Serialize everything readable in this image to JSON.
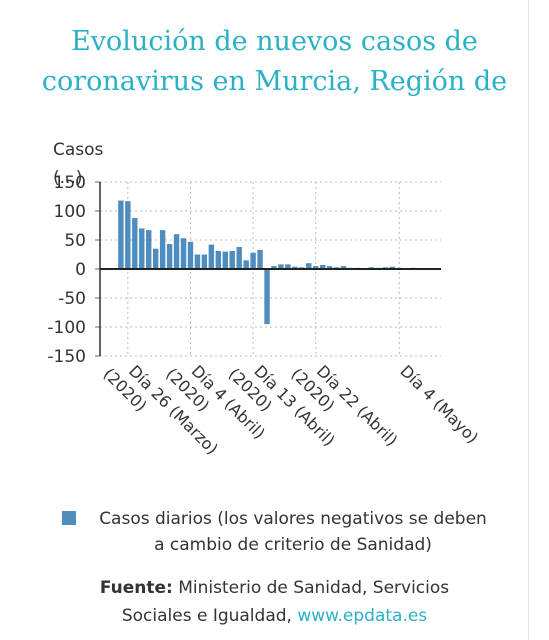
{
  "title": "Evolución de nuevos casos de\ncoronavirus en Murcia, Región de",
  "legend": {
    "label": "Casos diarios (los valores negativos se deben\na cambio de criterio de Sanidad)"
  },
  "source": {
    "label": "Fuente:",
    "text": "Ministerio de Sanidad, Servicios\nSociales e Igualdad,",
    "link": "www.epdata.es"
  },
  "colors": {
    "title": "#2bb1c6",
    "bar": "#4f8dbf",
    "zero_line": "#222222",
    "grid": "#bbbbbb"
  },
  "chart_data": {
    "type": "bar",
    "ylabel": "Casos\n(...)",
    "ylim": [
      -150,
      150
    ],
    "yticks": [
      150,
      100,
      50,
      0,
      -50,
      -100,
      -150
    ],
    "grid": true,
    "legend_position": "bottom",
    "x_start": "2020-03-22",
    "x_end": "2020-05-10",
    "xticks": [
      {
        "date": "2020-03-26",
        "label": "Día 26 (Marzo)\n(2020)"
      },
      {
        "date": "2020-04-04",
        "label": "Día 4 (Abril)\n(2020)"
      },
      {
        "date": "2020-04-13",
        "label": "Día 13 (Abril)\n(2020)"
      },
      {
        "date": "2020-04-22",
        "label": "Día 22 (Abril)\n(2020)"
      },
      {
        "date": "2020-05-04",
        "label": "Día 4 (Mayo)"
      }
    ],
    "series": [
      {
        "name": "Casos diarios (los valores negativos se deben a cambio de criterio de Sanidad)",
        "x": [
          "2020-03-25",
          "2020-03-26",
          "2020-03-27",
          "2020-03-28",
          "2020-03-29",
          "2020-03-30",
          "2020-03-31",
          "2020-04-01",
          "2020-04-02",
          "2020-04-03",
          "2020-04-04",
          "2020-04-05",
          "2020-04-06",
          "2020-04-07",
          "2020-04-08",
          "2020-04-09",
          "2020-04-10",
          "2020-04-11",
          "2020-04-12",
          "2020-04-13",
          "2020-04-14",
          "2020-04-15",
          "2020-04-16",
          "2020-04-17",
          "2020-04-18",
          "2020-04-19",
          "2020-04-20",
          "2020-04-21",
          "2020-04-22",
          "2020-04-23",
          "2020-04-24",
          "2020-04-25",
          "2020-04-26",
          "2020-04-27",
          "2020-04-28",
          "2020-04-29",
          "2020-04-30",
          "2020-05-01",
          "2020-05-02",
          "2020-05-03",
          "2020-05-04",
          "2020-05-05",
          "2020-05-06",
          "2020-05-07"
        ],
        "values": [
          118,
          117,
          88,
          70,
          67,
          35,
          67,
          43,
          60,
          53,
          47,
          25,
          25,
          42,
          31,
          30,
          31,
          38,
          15,
          28,
          33,
          -95,
          5,
          8,
          8,
          4,
          3,
          10,
          5,
          7,
          5,
          3,
          5,
          2,
          2,
          1,
          3,
          2,
          3,
          4,
          2,
          1,
          2,
          1
        ]
      }
    ]
  }
}
